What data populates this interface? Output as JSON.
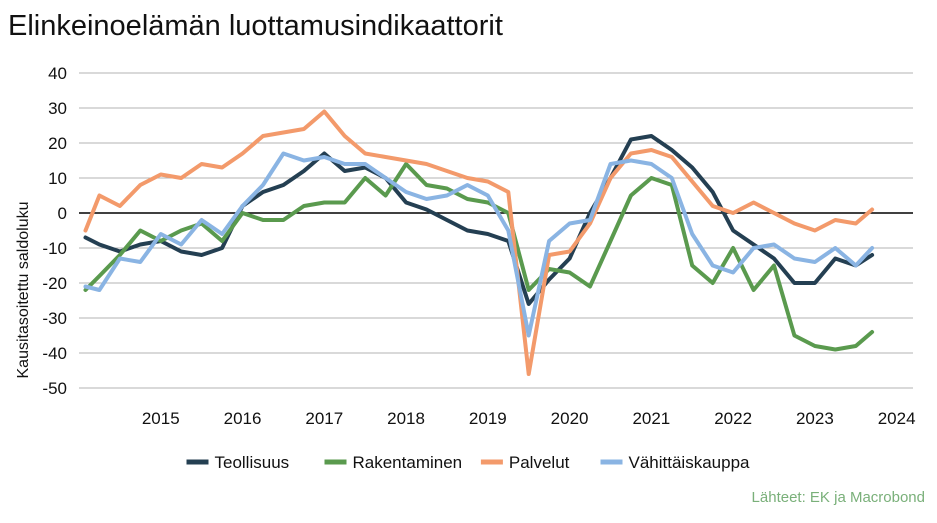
{
  "title": "Elinkeinoelämän luottamusindikaattorit",
  "source": "Lähteet: EK ja Macrobond",
  "chart_data": {
    "type": "line",
    "title": "Elinkeinoelämän luottamusindikaattorit",
    "ylabel": "Kausitasoitettu saldoluku",
    "xlabel": "",
    "ylim": [
      -50,
      40
    ],
    "yticks": [
      -50,
      -40,
      -30,
      -20,
      -10,
      0,
      10,
      20,
      30,
      40
    ],
    "xticks": [
      2015,
      2016,
      2017,
      2018,
      2019,
      2020,
      2021,
      2022,
      2023,
      2024
    ],
    "xlim": [
      2014.5,
      2024.7
    ],
    "grid": "horizontal",
    "zero_line": true,
    "legend_position": "bottom",
    "series": [
      {
        "name": "Teollisuus",
        "color": "#243f52",
        "x": [
          2014.58,
          2014.75,
          2015.0,
          2015.25,
          2015.5,
          2015.75,
          2016.0,
          2016.25,
          2016.5,
          2016.75,
          2017.0,
          2017.25,
          2017.5,
          2017.75,
          2018.0,
          2018.25,
          2018.5,
          2018.75,
          2019.0,
          2019.25,
          2019.5,
          2019.75,
          2020.0,
          2020.25,
          2020.5,
          2020.75,
          2021.0,
          2021.25,
          2021.5,
          2021.75,
          2022.0,
          2022.25,
          2022.5,
          2022.75,
          2023.0,
          2023.25,
          2023.5,
          2023.75,
          2024.0,
          2024.2
        ],
        "values": [
          -7,
          -9,
          -11,
          -9,
          -8,
          -11,
          -12,
          -10,
          2,
          6,
          8,
          12,
          17,
          12,
          13,
          10,
          3,
          1,
          -2,
          -5,
          -6,
          -8,
          -26,
          -19,
          -13,
          0,
          10,
          21,
          22,
          18,
          13,
          6,
          -5,
          -9,
          -13,
          -20,
          -20,
          -13,
          -15,
          -12
        ]
      },
      {
        "name": "Rakentaminen",
        "color": "#5a9a4e",
        "x": [
          2014.58,
          2014.75,
          2015.0,
          2015.25,
          2015.5,
          2015.75,
          2016.0,
          2016.25,
          2016.5,
          2016.75,
          2017.0,
          2017.25,
          2017.5,
          2017.75,
          2018.0,
          2018.25,
          2018.5,
          2018.75,
          2019.0,
          2019.25,
          2019.5,
          2019.75,
          2020.0,
          2020.25,
          2020.5,
          2020.75,
          2021.0,
          2021.25,
          2021.5,
          2021.75,
          2022.0,
          2022.25,
          2022.5,
          2022.75,
          2023.0,
          2023.25,
          2023.5,
          2023.75,
          2024.0,
          2024.2
        ],
        "values": [
          -22,
          -18,
          -12,
          -5,
          -8,
          -5,
          -3,
          -8,
          0,
          -2,
          -2,
          2,
          3,
          3,
          10,
          5,
          14,
          8,
          7,
          4,
          3,
          0,
          -22,
          -16,
          -17,
          -21,
          -8,
          5,
          10,
          8,
          -15,
          -20,
          -10,
          -22,
          -15,
          -35,
          -38,
          -39,
          -38,
          -34
        ]
      },
      {
        "name": "Palvelut",
        "color": "#f39a6b",
        "x": [
          2014.58,
          2014.75,
          2015.0,
          2015.25,
          2015.5,
          2015.75,
          2016.0,
          2016.25,
          2016.5,
          2016.75,
          2017.0,
          2017.25,
          2017.5,
          2017.75,
          2018.0,
          2018.25,
          2018.5,
          2018.75,
          2019.0,
          2019.25,
          2019.5,
          2019.75,
          2020.0,
          2020.25,
          2020.5,
          2020.75,
          2021.0,
          2021.25,
          2021.5,
          2021.75,
          2022.0,
          2022.25,
          2022.5,
          2022.75,
          2023.0,
          2023.25,
          2023.5,
          2023.75,
          2024.0,
          2024.2
        ],
        "values": [
          -5,
          5,
          2,
          8,
          11,
          10,
          14,
          13,
          17,
          22,
          23,
          24,
          29,
          22,
          17,
          16,
          15,
          14,
          12,
          10,
          9,
          6,
          -46,
          -12,
          -11,
          -3,
          10,
          17,
          18,
          16,
          9,
          2,
          0,
          3,
          0,
          -3,
          -5,
          -2,
          -3,
          1
        ]
      },
      {
        "name": "Vähittäiskauppa",
        "color": "#8ab4e3",
        "x": [
          2014.58,
          2014.75,
          2015.0,
          2015.25,
          2015.5,
          2015.75,
          2016.0,
          2016.25,
          2016.5,
          2016.75,
          2017.0,
          2017.25,
          2017.5,
          2017.75,
          2018.0,
          2018.25,
          2018.5,
          2018.75,
          2019.0,
          2019.25,
          2019.5,
          2019.75,
          2020.0,
          2020.25,
          2020.5,
          2020.75,
          2021.0,
          2021.25,
          2021.5,
          2021.75,
          2022.0,
          2022.25,
          2022.5,
          2022.75,
          2023.0,
          2023.25,
          2023.5,
          2023.75,
          2024.0,
          2024.2
        ],
        "values": [
          -21,
          -22,
          -13,
          -14,
          -6,
          -9,
          -2,
          -6,
          2,
          8,
          17,
          15,
          16,
          14,
          14,
          10,
          6,
          4,
          5,
          8,
          5,
          -5,
          -35,
          -8,
          -3,
          -2,
          14,
          15,
          14,
          10,
          -6,
          -15,
          -17,
          -10,
          -9,
          -13,
          -14,
          -10,
          -15,
          -10
        ]
      }
    ]
  }
}
